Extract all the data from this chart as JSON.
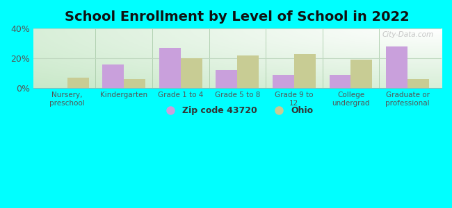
{
  "title": "School Enrollment by Level of School in 2022",
  "categories": [
    "Nursery,\npreschool",
    "Kindergarten",
    "Grade 1 to 4",
    "Grade 5 to 8",
    "Grade 9 to\n12",
    "College\nundergrad",
    "Graduate or\nprofessional"
  ],
  "zip_values": [
    0,
    16,
    27,
    12,
    9,
    9,
    28
  ],
  "ohio_values": [
    7,
    6,
    20,
    22,
    23,
    19,
    6
  ],
  "zip_color": "#c9a0dc",
  "ohio_color": "#c8cc94",
  "background_color": "#00ffff",
  "plot_bg_topleft": "#c8e8c8",
  "plot_bg_bottomright": "#ffffff",
  "ylim": [
    0,
    40
  ],
  "yticks": [
    0,
    20,
    40
  ],
  "ytick_labels": [
    "0%",
    "20%",
    "40%"
  ],
  "zip_label": "Zip code 43720",
  "ohio_label": "Ohio",
  "title_fontsize": 14,
  "bar_width": 0.38,
  "watermark": "City-Data.com",
  "divider_color": "#aaccaa",
  "grid_color": "#c0d8c0"
}
